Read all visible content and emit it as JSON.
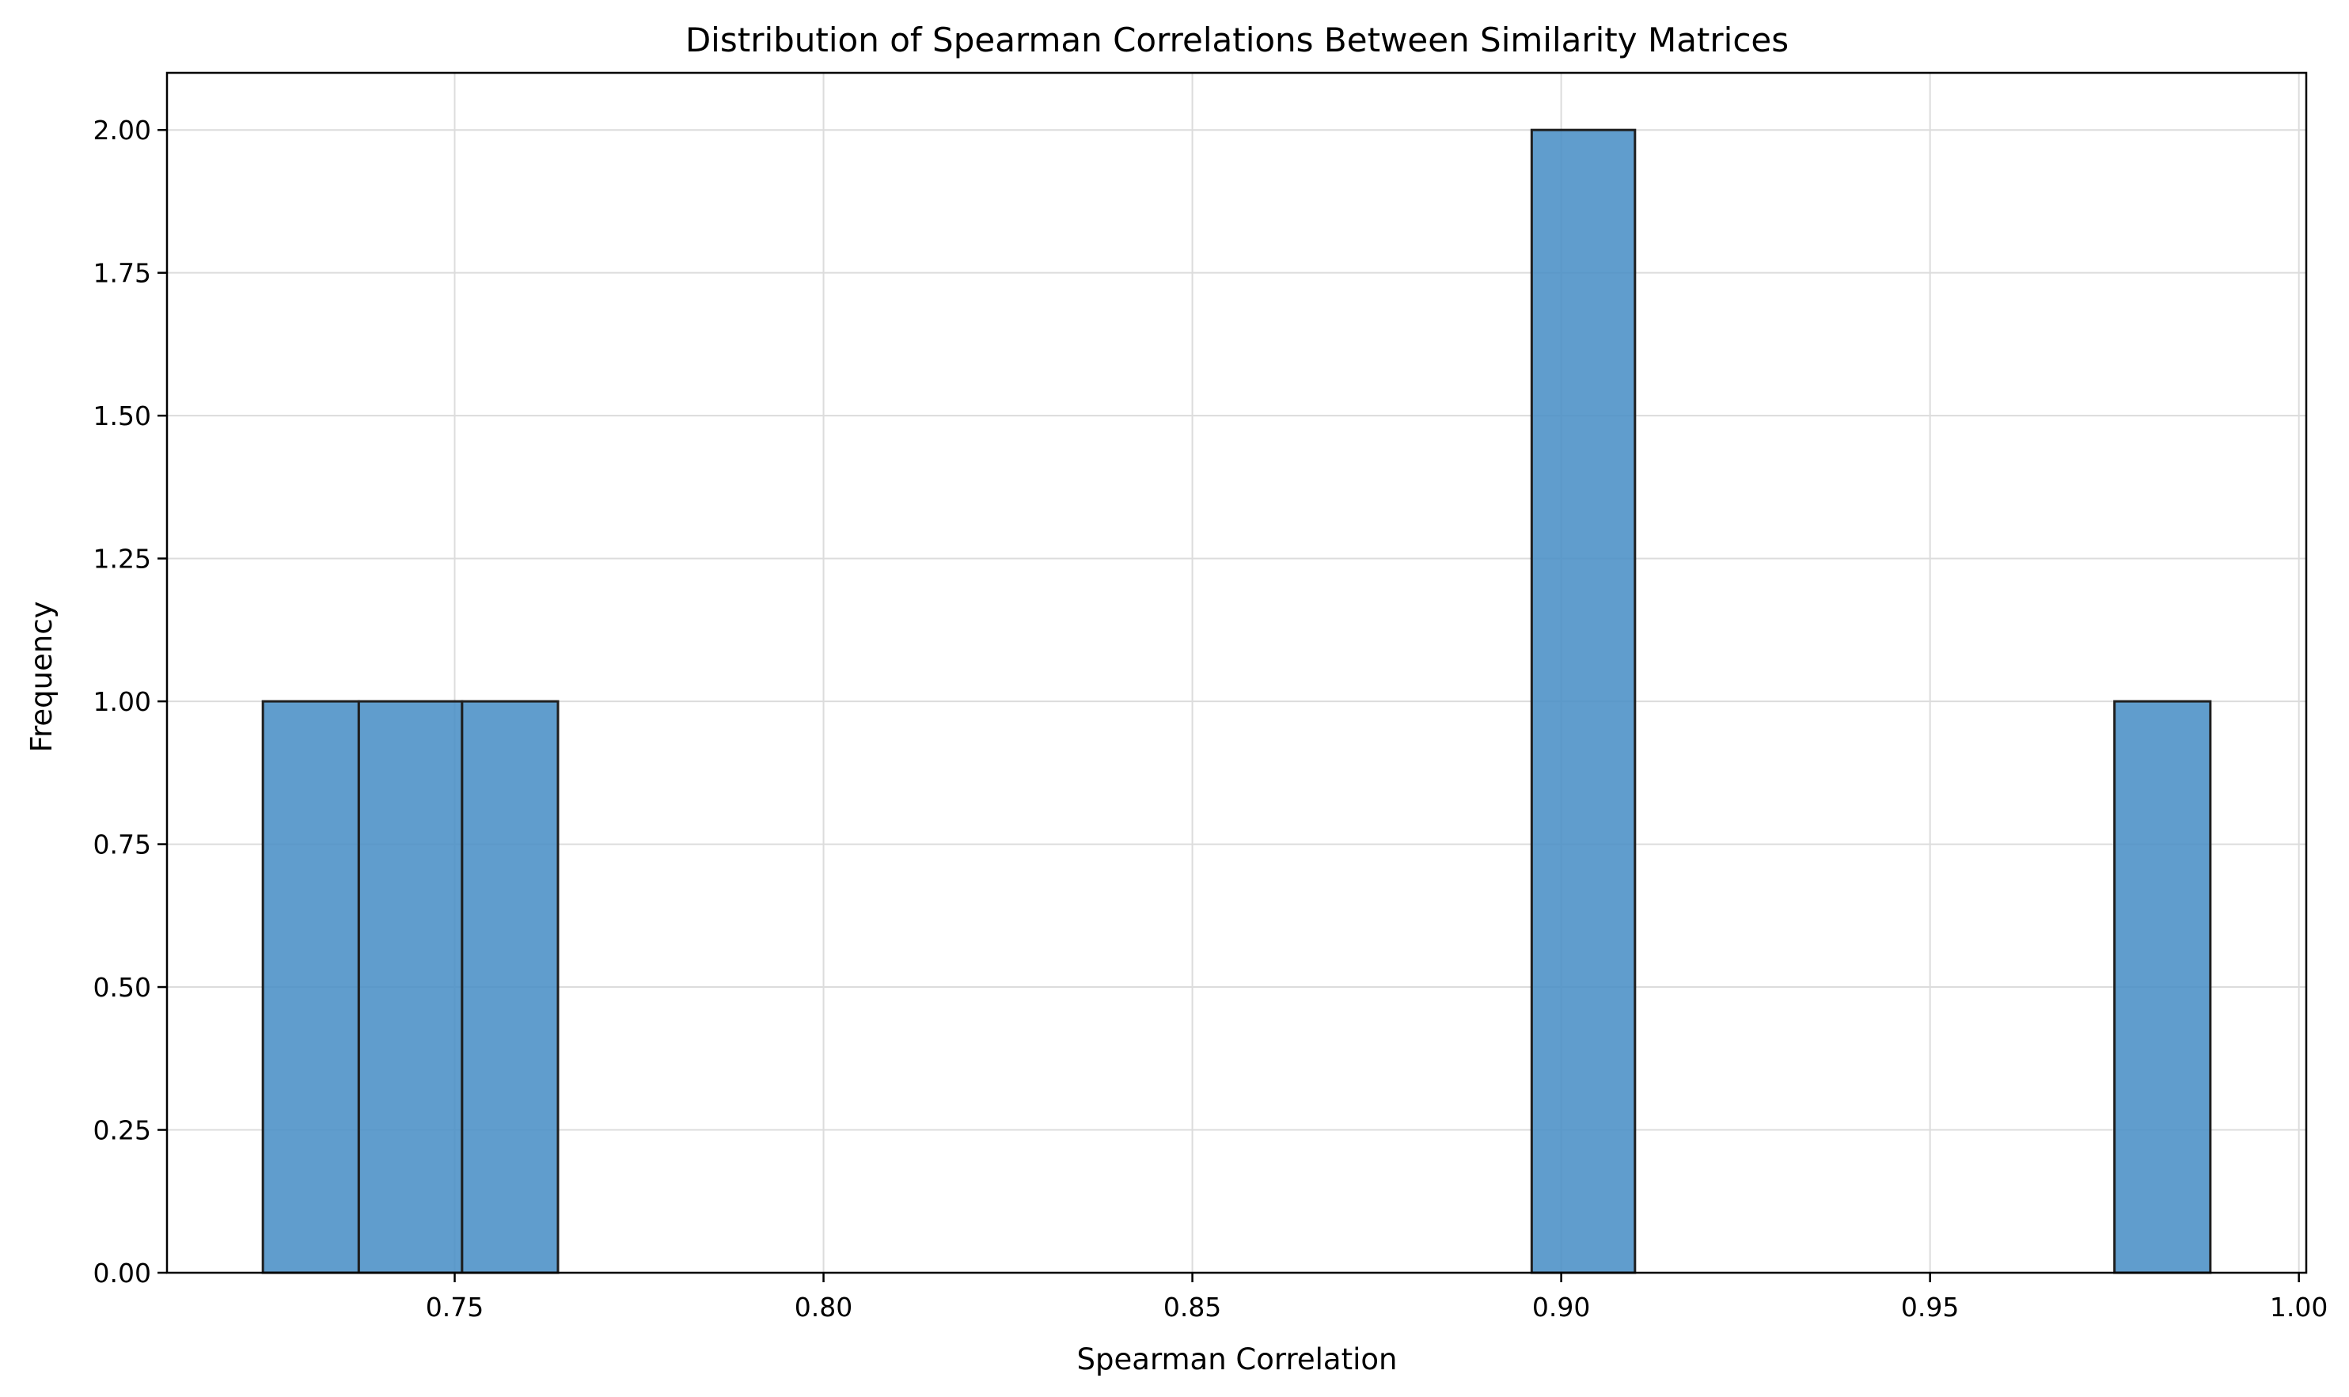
{
  "chart_data": {
    "type": "bar",
    "title": "Distribution of Spearman Correlations Between Similarity Matrices",
    "xlabel": "Spearman Correlation",
    "ylabel": "Frequency",
    "xlim": [
      0.711,
      1.001
    ],
    "ylim": [
      0,
      2.1
    ],
    "grid": true,
    "bar_color": "#4a90c6",
    "bar_edge_color": "#1f1f1f",
    "bins": [
      {
        "x0": 0.724,
        "x1": 0.737,
        "value": 1
      },
      {
        "x0": 0.737,
        "x1": 0.751,
        "value": 1
      },
      {
        "x0": 0.751,
        "x1": 0.764,
        "value": 1
      },
      {
        "x0": 0.896,
        "x1": 0.91,
        "value": 2
      },
      {
        "x0": 0.975,
        "x1": 0.988,
        "value": 1
      }
    ],
    "x_ticks": [
      {
        "value": 0.75,
        "label": "0.75"
      },
      {
        "value": 0.8,
        "label": "0.80"
      },
      {
        "value": 0.85,
        "label": "0.85"
      },
      {
        "value": 0.9,
        "label": "0.90"
      },
      {
        "value": 0.95,
        "label": "0.95"
      },
      {
        "value": 1.0,
        "label": "1.00"
      }
    ],
    "y_ticks": [
      {
        "value": 0.0,
        "label": "0.00"
      },
      {
        "value": 0.25,
        "label": "0.25"
      },
      {
        "value": 0.5,
        "label": "0.50"
      },
      {
        "value": 0.75,
        "label": "0.75"
      },
      {
        "value": 1.0,
        "label": "1.00"
      },
      {
        "value": 1.25,
        "label": "1.25"
      },
      {
        "value": 1.5,
        "label": "1.50"
      },
      {
        "value": 1.75,
        "label": "1.75"
      },
      {
        "value": 2.0,
        "label": "2.00"
      }
    ]
  }
}
